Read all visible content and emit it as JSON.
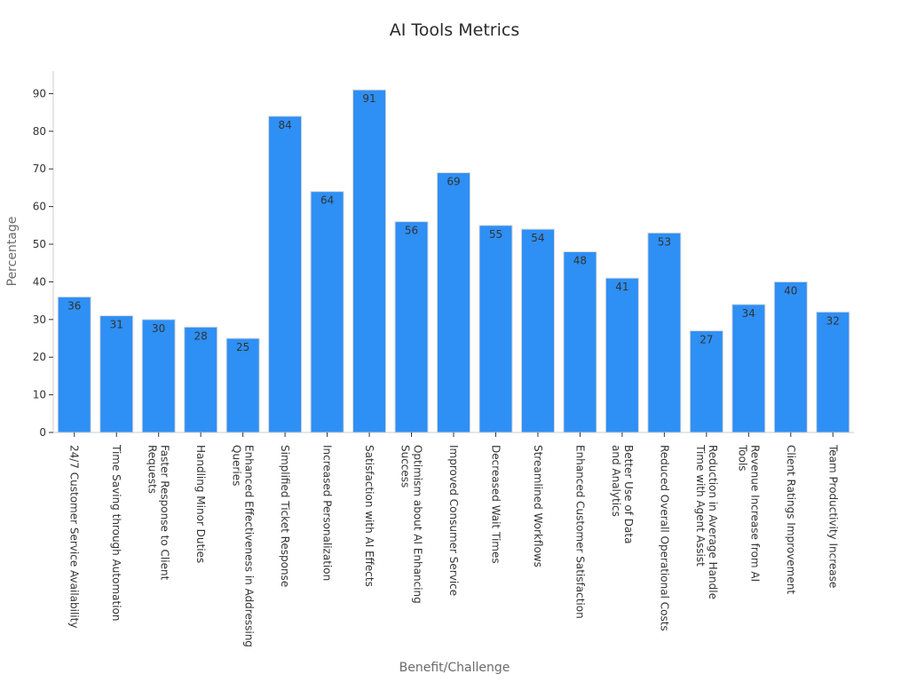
{
  "chart_data": {
    "type": "bar",
    "title": "AI Tools Metrics",
    "xlabel": "Benefit/Challenge",
    "ylabel": "Percentage",
    "ylim": [
      0,
      96
    ],
    "yticks": [
      0,
      10,
      20,
      30,
      40,
      50,
      60,
      70,
      80,
      90
    ],
    "grid": false,
    "bar_color": "#2e8ff5",
    "categories": [
      [
        "24/7 Customer Service Availability"
      ],
      [
        "Time Saving through Automation"
      ],
      [
        "Faster Response to Client",
        "Requests"
      ],
      [
        "Handling Minor Duties"
      ],
      [
        "Enhanced Effectiveness in Addressing",
        "Queries"
      ],
      [
        "Simplified Ticket Response"
      ],
      [
        "Increased Personalization"
      ],
      [
        "Satisfaction with AI Effects"
      ],
      [
        "Optimism about AI Enhancing",
        "Success"
      ],
      [
        "Improved Consumer Service"
      ],
      [
        "Decreased Wait Times"
      ],
      [
        "Streamlined Workflows"
      ],
      [
        "Enhanced Customer Satisfaction"
      ],
      [
        "Better Use of Data",
        "and Analytics"
      ],
      [
        "Reduced Overall Operational Costs"
      ],
      [
        "Reduction in Average Handle",
        "Time with Agent Assist"
      ],
      [
        "Revenue Increase from AI",
        "Tools"
      ],
      [
        "Client Ratings Improvement"
      ],
      [
        "Team Productivity Increase"
      ]
    ],
    "values": [
      36,
      31,
      30,
      28,
      25,
      84,
      64,
      91,
      56,
      69,
      55,
      54,
      48,
      41,
      53,
      27,
      34,
      40,
      32
    ]
  }
}
